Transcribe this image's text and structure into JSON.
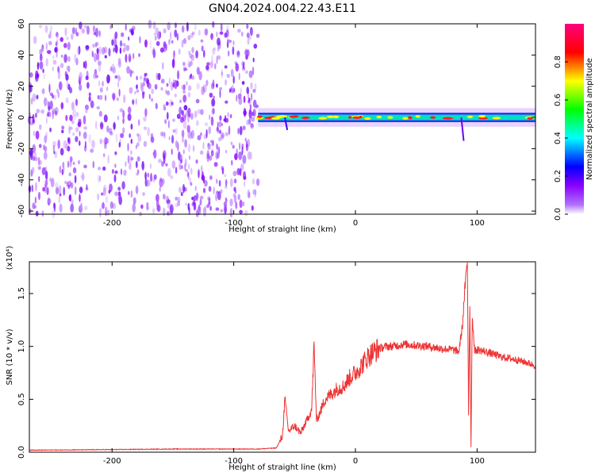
{
  "title": "GN04.2024.004.22.43.E11",
  "chart_data": [
    {
      "type": "heatmap",
      "xlabel": "Height of straight line (km)",
      "ylabel": "Frequency (Hz)",
      "xlim": [
        -268,
        148
      ],
      "ylim": [
        -62,
        60
      ],
      "xticks": [
        -200,
        -100,
        0,
        100
      ],
      "xtick_labels": [
        "-200",
        "-100",
        "0",
        "100"
      ],
      "yticks": [
        -60,
        -40,
        -20,
        0,
        20,
        40,
        60
      ],
      "ytick_labels": [
        "-60",
        "-40",
        "-20",
        "0",
        "20",
        "40",
        "60"
      ],
      "grid": false,
      "colorbar": {
        "label": "Normalized spectral amplitude",
        "range": [
          0,
          1
        ],
        "ticks": [
          0,
          0.2,
          0.4,
          0.6,
          0.8
        ],
        "tick_labels": [
          "0.0",
          "0.2",
          "0.4",
          "0.6",
          "0.8"
        ],
        "colors": [
          "#ffffff",
          "#8b00ff",
          "#0000ff",
          "#00ffff",
          "#00ff00",
          "#ffff00",
          "#ff0000",
          "#ff0080"
        ]
      },
      "features": {
        "noise_region_x": [
          -268,
          -80
        ],
        "noise_amplitude_range": [
          0.05,
          0.3
        ],
        "band_center_hz": 0,
        "band_peak_amplitude": 1.0,
        "band_x_range": [
          -80,
          148
        ]
      }
    },
    {
      "type": "line",
      "xlabel": "Height of straight line (km)",
      "ylabel": "SNR (10 * v/v)",
      "scale_label": "(x10⁴)",
      "xlim": [
        -268,
        148
      ],
      "ylim": [
        0,
        1.8
      ],
      "xticks": [
        -200,
        -100,
        0,
        100
      ],
      "xtick_labels": [
        "-200",
        "-100",
        "0",
        "100"
      ],
      "yticks": [
        0,
        0.5,
        1.0,
        1.5
      ],
      "ytick_labels": [
        "0.0",
        "0.5",
        "1.0",
        "1.5"
      ],
      "line_color": "#ee3333",
      "series": [
        {
          "x": [
            -268,
            -250,
            -200,
            -150,
            -100,
            -80,
            -65,
            -60,
            -58,
            -55,
            -50,
            -45,
            -40,
            -36,
            -34,
            -32,
            -30,
            -25,
            -20,
            -15,
            -10,
            -5,
            0,
            5,
            10,
            15,
            20,
            25,
            30,
            40,
            50,
            60,
            70,
            80,
            85,
            88,
            90,
            92,
            93,
            94,
            95,
            96,
            98,
            100,
            110,
            120,
            130,
            140,
            148
          ],
          "y": [
            0.02,
            0.02,
            0.025,
            0.03,
            0.03,
            0.03,
            0.04,
            0.15,
            0.5,
            0.2,
            0.25,
            0.18,
            0.3,
            0.4,
            1.0,
            0.3,
            0.35,
            0.5,
            0.55,
            0.6,
            0.62,
            0.7,
            0.75,
            0.82,
            0.9,
            0.95,
            0.98,
            1.0,
            1.0,
            1.02,
            1.01,
            1.0,
            0.98,
            0.97,
            0.95,
            1.2,
            1.55,
            1.8,
            0.35,
            1.4,
            0.05,
            1.3,
            0.95,
            0.97,
            0.94,
            0.9,
            0.88,
            0.85,
            0.82
          ]
        }
      ]
    }
  ]
}
